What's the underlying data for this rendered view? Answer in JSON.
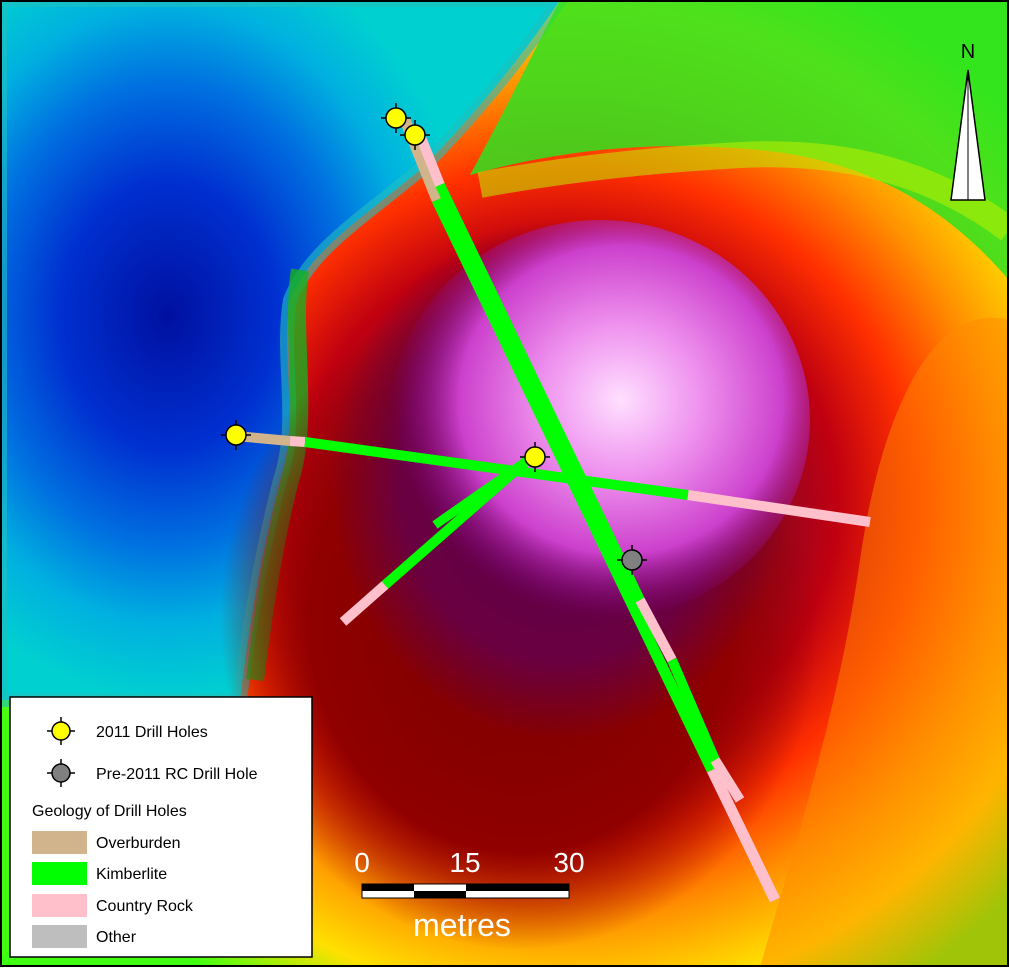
{
  "north_arrow": {
    "label": "N"
  },
  "legend": {
    "items": [
      {
        "label": "2011 Drill Holes",
        "icon": "drill-hole-marker-icon",
        "color": "#ffff00"
      },
      {
        "label": "Pre-2011 RC Drill Hole",
        "icon": "drill-hole-marker-icon",
        "color": "#808080"
      }
    ],
    "geology_title": "Geology of Drill Holes",
    "geology": [
      {
        "label": "Overburden",
        "color": "#d2b48c"
      },
      {
        "label": "Kimberlite",
        "color": "#00ff00"
      },
      {
        "label": "Country Rock",
        "color": "#ffc0cb"
      },
      {
        "label": "Other",
        "color": "#bebebe"
      }
    ]
  },
  "scale_bar": {
    "ticks": [
      "0",
      "15",
      "30"
    ],
    "unit": "metres"
  }
}
